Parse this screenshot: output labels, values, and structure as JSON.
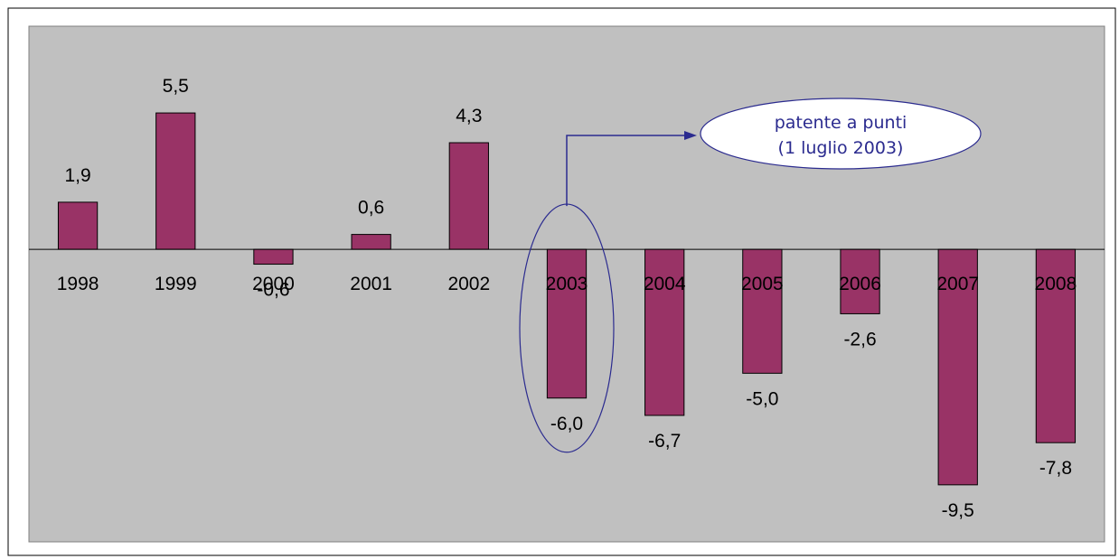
{
  "chart_data": {
    "type": "bar",
    "categories": [
      "1998",
      "1999",
      "2000",
      "2001",
      "2002",
      "2003",
      "2004",
      "2005",
      "2006",
      "2007",
      "2008"
    ],
    "values": [
      1.9,
      5.5,
      -0.6,
      0.6,
      4.3,
      -6.0,
      -6.7,
      -5.0,
      -2.6,
      -9.5,
      -7.8
    ],
    "value_labels": [
      "1,9",
      "5,5",
      "-0,6",
      "0,6",
      "4,3",
      "-6,0",
      "-6,7",
      "-5,0",
      "-2,6",
      "-9,5",
      "-7,8"
    ],
    "title": "",
    "xlabel": "",
    "ylabel": "",
    "ylim": [
      -11.8,
      9.0
    ],
    "grid": false,
    "legend": "none",
    "highlighted_category": "2003",
    "annotation": {
      "line1": "patente a punti",
      "line2": "(1 luglio 2003)"
    }
  },
  "colors": {
    "bar_fill": "#993366",
    "bar_stroke": "#000000",
    "plot_background": "#c0c0c0",
    "annotation": "#2b2b8f"
  }
}
